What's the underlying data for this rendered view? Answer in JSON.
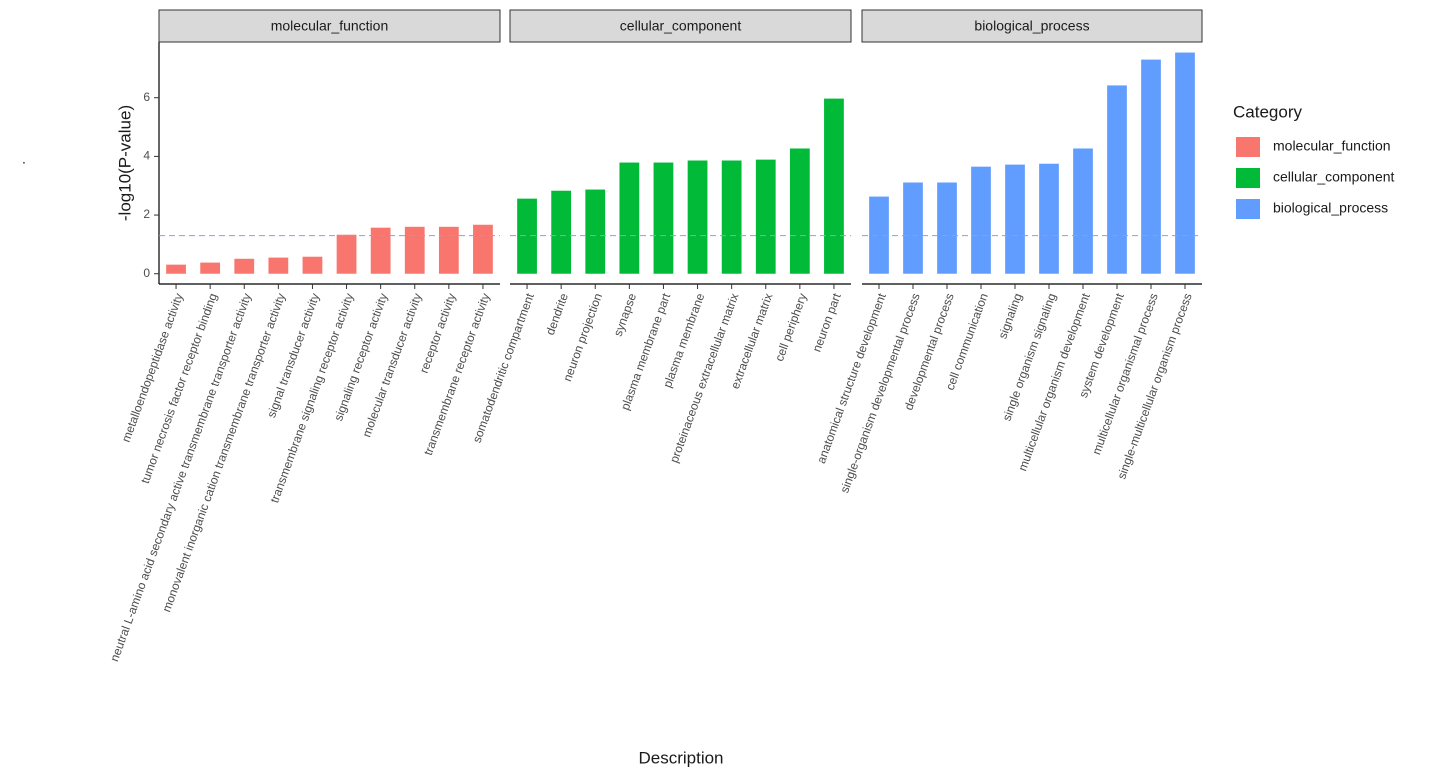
{
  "chart_data": {
    "type": "bar",
    "tag": ".",
    "x_label": "Description",
    "y_label": "-log10(P-value)",
    "legend_title": "Category",
    "ylim": [
      -0.35,
      7.9
    ],
    "yticks": [
      0,
      2,
      4,
      6
    ],
    "grid": false,
    "hline": {
      "value": 1.3,
      "color": "#9a9ad8"
    },
    "series": [
      {
        "name": "molecular_function",
        "color": "#f8766d",
        "categories": [
          "metalloendopeptidase activity",
          "tumor necrosis factor receptor binding",
          "neutral L-amino acid secondary active transmembrane transporter activity",
          "monovalent inorganic cation transmembrane transporter activity",
          "signal transducer activity",
          "transmembrane signaling receptor activity",
          "signaling receptor activity",
          "molecular transducer activity",
          "receptor activity",
          "transmembrane receptor activity"
        ],
        "values": [
          0.31,
          0.38,
          0.51,
          0.55,
          0.58,
          1.33,
          1.57,
          1.6,
          1.6,
          1.67
        ]
      },
      {
        "name": "cellular_component",
        "color": "#00ba38",
        "categories": [
          "somatodendritic compartment",
          "dendrite",
          "neuron projection",
          "synapse",
          "plasma membrane part",
          "plasma membrane",
          "proteinaceous extracellular matrix",
          "extracellular matrix",
          "cell periphery",
          "neuron part"
        ],
        "values": [
          2.56,
          2.83,
          2.87,
          3.79,
          3.79,
          3.86,
          3.86,
          3.89,
          4.27,
          5.97
        ]
      },
      {
        "name": "biological_process",
        "color": "#619cff",
        "categories": [
          "anatomical structure development",
          "single-organism developmental process",
          "developmental process",
          "cell communication",
          "signaling",
          "single organism signaling",
          "multicellular organism development",
          "system development",
          "multicellular organismal process",
          "single-multicellular organism process"
        ],
        "values": [
          2.63,
          3.11,
          3.11,
          3.65,
          3.72,
          3.75,
          4.27,
          6.42,
          7.3,
          7.54
        ]
      }
    ]
  }
}
